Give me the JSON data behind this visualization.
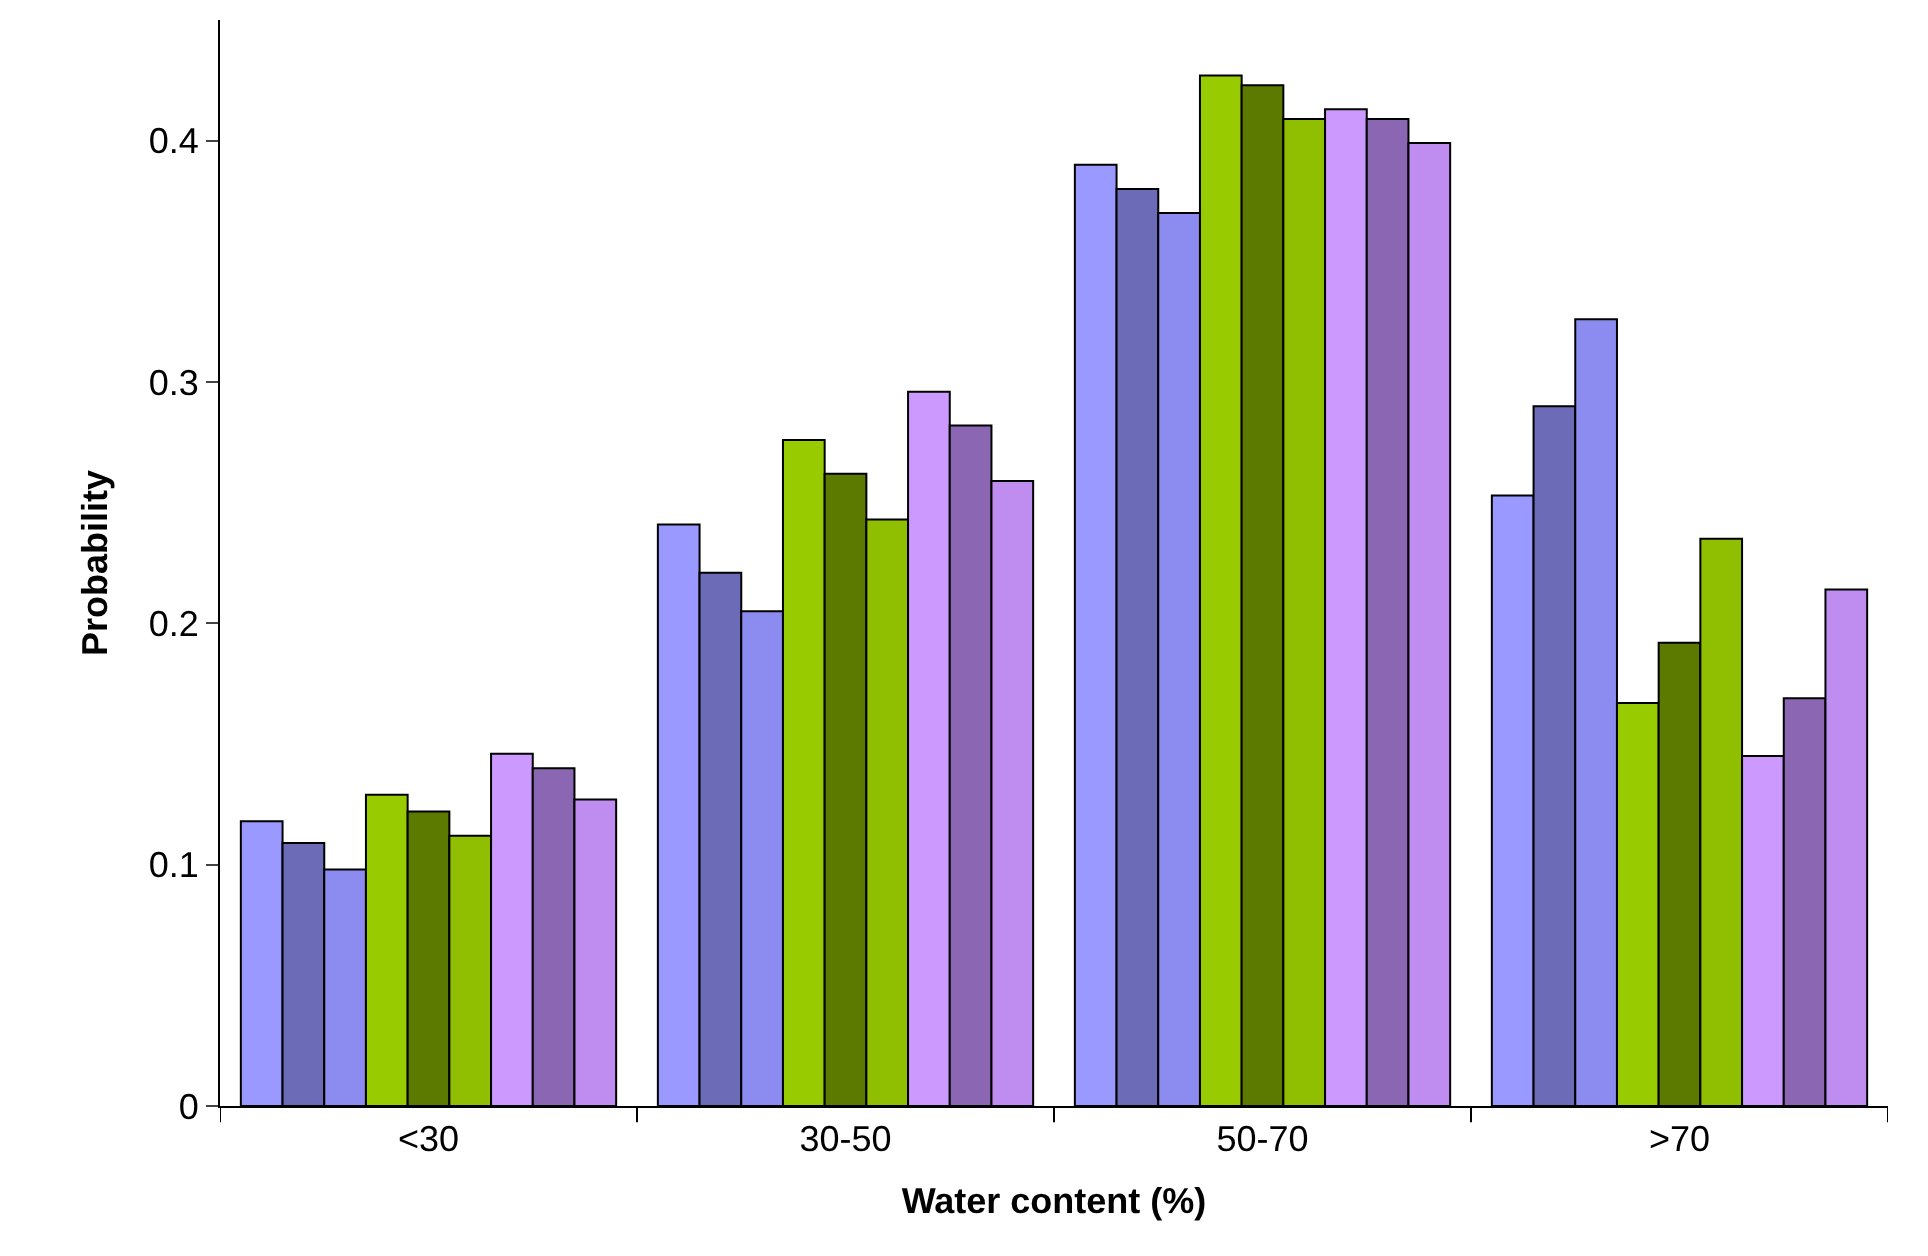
{
  "chart_data": {
    "type": "bar",
    "xlabel": "Water content (%)",
    "ylabel": "Probability",
    "categories": [
      "<30",
      "30-50",
      "50-70",
      ">70"
    ],
    "series": [
      {
        "color": "#9999ff",
        "values": [
          0.118,
          0.241,
          0.39,
          0.253
        ]
      },
      {
        "color": "#6b6bb8",
        "values": [
          0.109,
          0.221,
          0.38,
          0.29
        ]
      },
      {
        "color": "#8c8cf0",
        "values": [
          0.098,
          0.205,
          0.37,
          0.326
        ]
      },
      {
        "color": "#99cc00",
        "values": [
          0.129,
          0.276,
          0.427,
          0.167
        ]
      },
      {
        "color": "#5c7a00",
        "values": [
          0.122,
          0.262,
          0.423,
          0.192
        ]
      },
      {
        "color": "#8fbf00",
        "values": [
          0.112,
          0.243,
          0.409,
          0.235
        ]
      },
      {
        "color": "#cc99ff",
        "values": [
          0.146,
          0.296,
          0.413,
          0.145
        ]
      },
      {
        "color": "#8a66b3",
        "values": [
          0.14,
          0.282,
          0.409,
          0.169
        ]
      },
      {
        "color": "#bf8cf0",
        "values": [
          0.127,
          0.259,
          0.399,
          0.214
        ]
      }
    ],
    "ylim": [
      0,
      0.45
    ],
    "yticks": [
      0,
      0.1,
      0.2,
      0.3,
      0.4
    ]
  }
}
